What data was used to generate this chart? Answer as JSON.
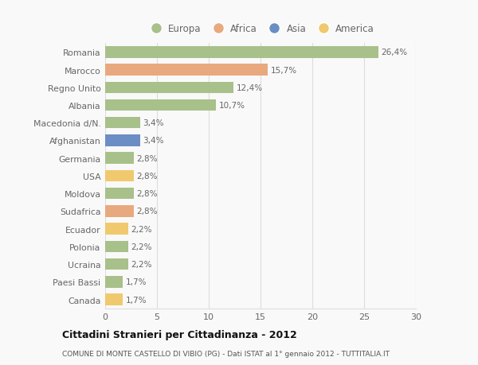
{
  "countries": [
    "Romania",
    "Marocco",
    "Regno Unito",
    "Albania",
    "Macedonia d/N.",
    "Afghanistan",
    "Germania",
    "USA",
    "Moldova",
    "Sudafrica",
    "Ecuador",
    "Polonia",
    "Ucraina",
    "Paesi Bassi",
    "Canada"
  ],
  "values": [
    26.4,
    15.7,
    12.4,
    10.7,
    3.4,
    3.4,
    2.8,
    2.8,
    2.8,
    2.8,
    2.2,
    2.2,
    2.2,
    1.7,
    1.7
  ],
  "labels": [
    "26,4%",
    "15,7%",
    "12,4%",
    "10,7%",
    "3,4%",
    "3,4%",
    "2,8%",
    "2,8%",
    "2,8%",
    "2,8%",
    "2,2%",
    "2,2%",
    "2,2%",
    "1,7%",
    "1,7%"
  ],
  "continents": [
    "Europa",
    "Africa",
    "Europa",
    "Europa",
    "Europa",
    "Asia",
    "Europa",
    "America",
    "Europa",
    "Africa",
    "America",
    "Europa",
    "Europa",
    "Europa",
    "America"
  ],
  "colors": {
    "Europa": "#a8c08a",
    "Africa": "#e8a97e",
    "Asia": "#6b8ec4",
    "America": "#f0c96e"
  },
  "xlim": [
    0,
    30
  ],
  "xticks": [
    0,
    5,
    10,
    15,
    20,
    25,
    30
  ],
  "title": "Cittadini Stranieri per Cittadinanza - 2012",
  "subtitle": "COMUNE DI MONTE CASTELLO DI VIBIO (PG) - Dati ISTAT al 1° gennaio 2012 - TUTTITALIA.IT",
  "background_color": "#f9f9f9",
  "bar_height": 0.65,
  "grid_color": "#dddddd",
  "text_color": "#666666",
  "title_color": "#111111",
  "subtitle_color": "#555555",
  "legend_entries": [
    "Europa",
    "Africa",
    "Asia",
    "America"
  ]
}
